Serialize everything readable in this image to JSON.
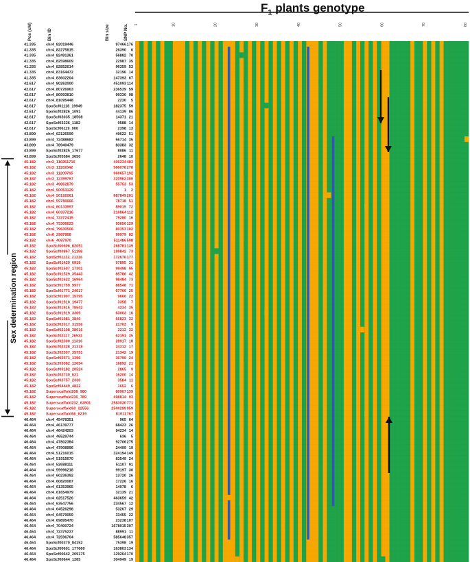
{
  "title": {
    "main": "F",
    "sub": "1",
    "rest": " plants genotype"
  },
  "headers": {
    "pos": "Pos (cM)",
    "bin": "Bin ID",
    "size": "Bin size",
    "snp": "SNP No."
  },
  "region_label": "Sex determination region",
  "plant_ticks": [
    "1",
    "10",
    "20",
    "30",
    "40",
    "50",
    "60",
    "70",
    "80"
  ],
  "colors": {
    "orange": "#F6A800",
    "green": "#1EA34A",
    "blue": "#2F5CA8",
    "text_black": "#222222",
    "text_red": "#E01B1B",
    "arrow": "#111111"
  },
  "rows": [
    [
      "41.335",
      "chr4_82019446",
      "97466",
      "176",
      "k"
    ],
    [
      "41.335",
      "chr4_82275815",
      "26390",
      "6",
      "k"
    ],
    [
      "41.335",
      "chr4_82491361",
      "56882",
      "70",
      "k"
    ],
    [
      "41.335",
      "chr4_82598609",
      "22987",
      "35",
      "k"
    ],
    [
      "41.335",
      "chr4_82852614",
      "96359",
      "53",
      "k"
    ],
    [
      "41.335",
      "chr4_83164472",
      "32196",
      "14",
      "k"
    ],
    [
      "41.335",
      "chr4_83602204",
      "147393",
      "67",
      "k"
    ],
    [
      "42.617",
      "chr4_80262000",
      "451093",
      "114",
      "k"
    ],
    [
      "42.617",
      "chr4_80726963",
      "236539",
      "59",
      "k"
    ],
    [
      "42.617",
      "chr4_80993810",
      "99330",
      "98",
      "k"
    ],
    [
      "42.617",
      "chr4_81095448",
      "2230",
      "5",
      "k"
    ],
    [
      "42.617",
      "SpoScf01118_19949",
      "182375",
      "59",
      "k"
    ],
    [
      "42.617",
      "SpoScf02826_1091",
      "44139",
      "86",
      "k"
    ],
    [
      "42.617",
      "SpoScf03035_18508",
      "14371",
      "21",
      "k"
    ],
    [
      "42.617",
      "SpoScf03226_1182",
      "9588",
      "14",
      "k"
    ],
    [
      "42.617",
      "SpoScf06119_900",
      "2398",
      "13",
      "k"
    ],
    [
      "43.899",
      "chr4_62126599",
      "49622",
      "51",
      "k"
    ],
    [
      "43.899",
      "chr4_72488682",
      "56714",
      "35",
      "k"
    ],
    [
      "43.899",
      "chr4_78940479",
      "83383",
      "32",
      "k"
    ],
    [
      "43.899",
      "SpoScf02825_17677",
      "8086",
      "11",
      "k"
    ],
    [
      "43.899",
      "SpoScf05584_3650",
      "2648",
      "10",
      "k"
    ],
    [
      "45.182",
      "chr3_110251716",
      "406234",
      "483",
      "r"
    ],
    [
      "45.182",
      "chr3_11102842",
      "566078",
      "278",
      "r"
    ],
    [
      "45.182",
      "chr3_11209765",
      "960657",
      "192",
      "r"
    ],
    [
      "45.182",
      "chr3_12399767",
      "320962",
      "300",
      "r"
    ],
    [
      "45.182",
      "chr3_49862879",
      "55753",
      "53",
      "r"
    ],
    [
      "45.182",
      "chr4_50053129",
      "1",
      "2",
      "r"
    ],
    [
      "45.182",
      "chr4_50192061",
      "687849",
      "201",
      "r"
    ],
    [
      "45.182",
      "chr4_59780666",
      "78718",
      "51",
      "r"
    ],
    [
      "45.182",
      "chr4_60133997",
      "89015",
      "72",
      "r"
    ],
    [
      "45.182",
      "chr4_60337216",
      "210864",
      "112",
      "r"
    ],
    [
      "45.182",
      "chr4_72272415",
      "79280",
      "16",
      "r"
    ],
    [
      "45.182",
      "chr4_73306623",
      "93650",
      "129",
      "r"
    ],
    [
      "45.182",
      "chr4_79630506",
      "80353",
      "102",
      "r"
    ],
    [
      "45.182",
      "chr6_2987868",
      "99979",
      "82",
      "r"
    ],
    [
      "45.182",
      "chr6_4087970",
      "511486",
      "598",
      "r"
    ],
    [
      "45.182",
      "SpoScf00606_82051",
      "268781",
      "139",
      "r"
    ],
    [
      "45.182",
      "SpoScf00867_51198",
      "199842",
      "73",
      "r"
    ],
    [
      "45.182",
      "SpoScf01132_21316",
      "172676",
      "177",
      "r"
    ],
    [
      "45.182",
      "SpoScf01429_6919",
      "97895",
      "31",
      "r"
    ],
    [
      "45.182",
      "SpoScf01507_17301",
      "99498",
      "95",
      "r"
    ],
    [
      "45.182",
      "SpoScf01529_35443",
      "85786",
      "42",
      "r"
    ],
    [
      "45.182",
      "SpoScf01622_16964",
      "98484",
      "73",
      "r"
    ],
    [
      "45.182",
      "SpoScf01759_9977",
      "88548",
      "71",
      "r"
    ],
    [
      "45.182",
      "SpoScf01771_24617",
      "67706",
      "25",
      "r"
    ],
    [
      "45.182",
      "SpoScf01907_15795",
      "9660",
      "22",
      "r"
    ],
    [
      "45.182",
      "SpoScf01910_19477",
      "3358",
      "7",
      "r"
    ],
    [
      "45.182",
      "SpoScf01915_78542",
      "4234",
      "35",
      "r"
    ],
    [
      "45.182",
      "SpoScf01919_3369",
      "63003",
      "16",
      "r"
    ],
    [
      "45.182",
      "SpoScf01981_3840",
      "66823",
      "32",
      "r"
    ],
    [
      "45.182",
      "SpoScf02017_31556",
      "21703",
      "9",
      "r"
    ],
    [
      "45.182",
      "SpoScf02108_38016",
      "2212",
      "32",
      "r"
    ],
    [
      "45.182",
      "SpoScf02117_26531",
      "62191",
      "35",
      "r"
    ],
    [
      "45.182",
      "SpoScf02300_11316",
      "28917",
      "18",
      "r"
    ],
    [
      "45.182",
      "SpoScf02328_31318",
      "24312",
      "17",
      "r"
    ],
    [
      "45.182",
      "SpoScf02507_35751",
      "21342",
      "19",
      "r"
    ],
    [
      "45.182",
      "SpoScf02571_1396",
      "36790",
      "24",
      "r"
    ],
    [
      "45.182",
      "SpoScf03082_12654",
      "16892",
      "21",
      "r"
    ],
    [
      "45.182",
      "SpoScf03182_20524",
      "2865",
      "9",
      "r"
    ],
    [
      "45.182",
      "SpoScf03730_621",
      "16200",
      "14",
      "r"
    ],
    [
      "45.182",
      "SpoScf03757_2330",
      "3584",
      "11",
      "r"
    ],
    [
      "45.182",
      "SpoScf04449_4822",
      "1652",
      "6",
      "r"
    ],
    [
      "45.182",
      "Superscaffold208_980",
      "80907",
      "139",
      "r"
    ],
    [
      "45.182",
      "Superscaffold230_789",
      "498814",
      "93",
      "r"
    ],
    [
      "45.182",
      "Superscaffold232_62801",
      "2583030",
      "771",
      "r"
    ],
    [
      "45.182",
      "Superscaffold60_22556",
      "2500299",
      "959",
      "r"
    ],
    [
      "45.182",
      "Superscaffold66_6219",
      "81011",
      "767",
      "r"
    ],
    [
      "46.464",
      "chr4_45478351",
      "965",
      "64",
      "k"
    ],
    [
      "46.464",
      "chr4_46139777",
      "68423",
      "26",
      "k"
    ],
    [
      "46.464",
      "chr4_46424203",
      "94234",
      "14",
      "k"
    ],
    [
      "46.464",
      "chr4_46529744",
      "636",
      "5",
      "k"
    ],
    [
      "46.464",
      "chr4_47802384",
      "92706",
      "275",
      "k"
    ],
    [
      "46.464",
      "chr4_47908996",
      "24499",
      "19",
      "k"
    ],
    [
      "46.464",
      "chr4_51216015",
      "324194",
      "149",
      "k"
    ],
    [
      "46.464",
      "chr4_51915670",
      "83549",
      "24",
      "k"
    ],
    [
      "46.464",
      "chr4_52688111",
      "51107",
      "91",
      "k"
    ],
    [
      "46.464",
      "chr4_59996218",
      "99197",
      "30",
      "k"
    ],
    [
      "46.464",
      "chr4_60236392",
      "13720",
      "26",
      "k"
    ],
    [
      "46.464",
      "chr4_60820087",
      "17226",
      "16",
      "k"
    ],
    [
      "46.464",
      "chr4_61353965",
      "14078",
      "6",
      "k"
    ],
    [
      "46.464",
      "chr4_61654979",
      "32139",
      "21",
      "k"
    ],
    [
      "46.464",
      "chr4_62517526",
      "463659",
      "42",
      "k"
    ],
    [
      "46.464",
      "chr4_63547756",
      "234567",
      "12",
      "k"
    ],
    [
      "46.464",
      "chr4_64526298",
      "53267",
      "29",
      "k"
    ],
    [
      "46.464",
      "chr4_64579059",
      "33455",
      "22",
      "k"
    ],
    [
      "46.464",
      "chr4_69895470",
      "23238",
      "107",
      "k"
    ],
    [
      "46.464",
      "chr4_70400724",
      "1678015",
      "307",
      "k"
    ],
    [
      "46.464",
      "chr4_72375237",
      "88991",
      "11",
      "k"
    ],
    [
      "46.464",
      "chr4_72596704",
      "585648",
      "357",
      "k"
    ],
    [
      "46.464",
      "SpoScf00370_84152",
      "75398",
      "19",
      "k"
    ],
    [
      "46.464",
      "SpoScf00601_177660",
      "163803",
      "134",
      "k"
    ],
    [
      "46.464",
      "SpoScf00642_209175",
      "129264",
      "170",
      "k"
    ],
    [
      "46.464",
      "SpoScf00644_1285",
      "304949",
      "19",
      "k"
    ]
  ]
}
